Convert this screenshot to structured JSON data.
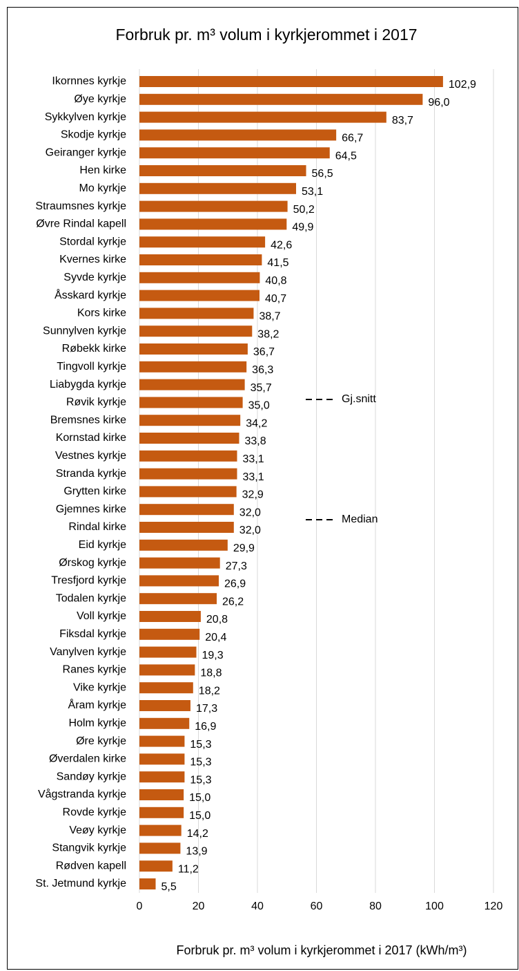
{
  "chart_data": {
    "type": "barh",
    "title": "Forbruk pr. m³ volum i kyrkjerommet i 2017",
    "x_label": "Forbruk pr. m³ volum i kyrkjerommet i 2017 (kWh/m³)",
    "categories": [
      "Ikornnes kyrkje",
      "Øye kyrkje",
      "Sykkylven kyrkje",
      "Skodje kyrkje",
      "Geiranger kyrkje",
      "Hen kirke",
      "Mo kyrkje",
      "Straumsnes kyrkje",
      "Øvre Rindal kapell",
      "Stordal kyrkje",
      "Kvernes kirke",
      "Syvde kyrkje",
      "Åsskard kyrkje",
      "Kors kirke",
      "Sunnylven kyrkje",
      "Røbekk kirke",
      "Tingvoll kyrkje",
      "Liabygda kyrkje",
      "Røvik kyrkje",
      "Bremsnes kirke",
      "Kornstad kirke",
      "Vestnes kyrkje",
      "Stranda kyrkje",
      "Grytten kirke",
      "Gjemnes kirke",
      "Rindal kirke",
      "Eid kyrkje",
      "Ørskog kyrkje",
      "Tresfjord kyrkje",
      "Todalen kyrkje",
      "Voll kyrkje",
      "Fiksdal kyrkje",
      "Vanylven kyrkje",
      "Ranes kyrkje",
      "Vike kyrkje",
      "Åram kyrkje",
      "Holm kyrkje",
      "Øre kyrkje",
      "Øverdalen kirke",
      "Sandøy kyrkje",
      "Vågstranda kyrkje",
      "Rovde kyrkje",
      "Veøy kyrkje",
      "Stangvik kyrkje",
      "Rødven kapell",
      "St. Jetmund kyrkje"
    ],
    "values": [
      102.9,
      96.0,
      83.7,
      66.7,
      64.5,
      56.5,
      53.1,
      50.2,
      49.9,
      42.6,
      41.5,
      40.8,
      40.7,
      38.7,
      38.2,
      36.7,
      36.3,
      35.7,
      35.0,
      34.2,
      33.8,
      33.1,
      33.1,
      32.9,
      32.0,
      32.0,
      29.9,
      27.3,
      26.9,
      26.2,
      20.8,
      20.4,
      19.3,
      18.8,
      18.2,
      17.3,
      16.9,
      15.3,
      15.3,
      15.3,
      15.0,
      15.0,
      14.2,
      13.9,
      11.2,
      5.5
    ],
    "value_labels": [
      "102,9",
      "96,0",
      "83,7",
      "66,7",
      "64,5",
      "56,5",
      "53,1",
      "50,2",
      "49,9",
      "42,6",
      "41,5",
      "40,8",
      "40,7",
      "38,7",
      "38,2",
      "36,7",
      "36,3",
      "35,7",
      "35,0",
      "34,2",
      "33,8",
      "33,1",
      "33,1",
      "32,9",
      "32,0",
      "32,0",
      "29,9",
      "27,3",
      "26,9",
      "26,2",
      "20,8",
      "20,4",
      "19,3",
      "18,8",
      "18,2",
      "17,3",
      "16,9",
      "15,3",
      "15,3",
      "15,3",
      "15,0",
      "15,0",
      "14,2",
      "13,9",
      "11,2",
      "5,5"
    ],
    "color": "#c55a11",
    "xlim": [
      0,
      120
    ],
    "xticks": [
      0,
      20,
      40,
      60,
      80,
      100,
      120
    ],
    "grid": true,
    "legend": [
      {
        "name": "Gj.snitt",
        "style": "dashed",
        "color": "#000000"
      },
      {
        "name": "Median",
        "style": "dashed",
        "color": "#000000"
      }
    ]
  }
}
